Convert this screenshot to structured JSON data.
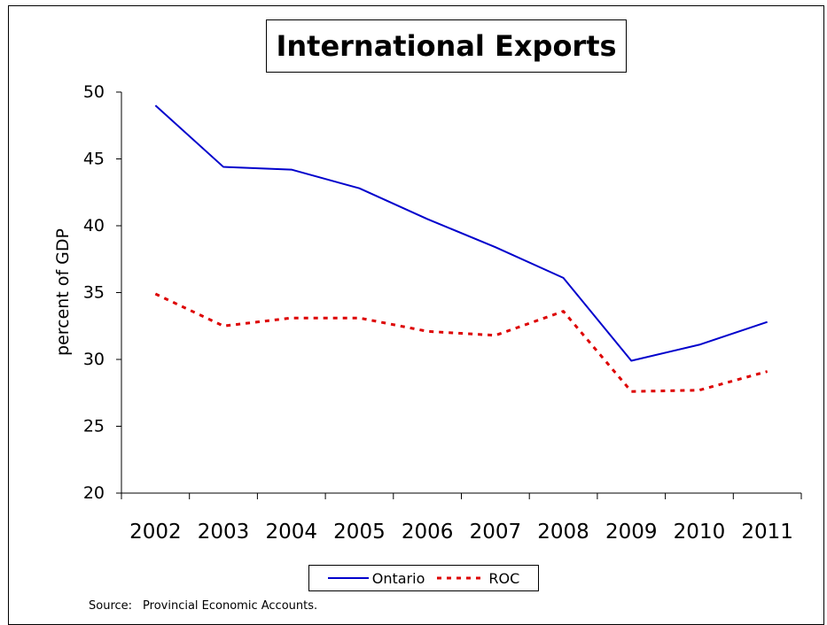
{
  "chart_data": {
    "type": "line",
    "title": "International Exports",
    "xlabel": "",
    "ylabel": "percent of GDP",
    "categories": [
      "2002",
      "2003",
      "2004",
      "2005",
      "2006",
      "2007",
      "2008",
      "2009",
      "2010",
      "2011"
    ],
    "ylim": [
      20,
      50
    ],
    "yticks": [
      "20",
      "25",
      "30",
      "35",
      "40",
      "45",
      "50"
    ],
    "series": [
      {
        "name": "Ontario",
        "values": [
          49.0,
          44.4,
          44.2,
          42.8,
          40.5,
          38.4,
          36.1,
          29.9,
          31.1,
          32.8
        ],
        "color": "#0000cc",
        "style": "solid"
      },
      {
        "name": "ROC",
        "values": [
          34.9,
          32.5,
          33.1,
          33.1,
          32.1,
          31.8,
          33.6,
          27.6,
          27.7,
          29.1
        ],
        "color": "#dd0000",
        "style": "dashed"
      }
    ],
    "grid": false,
    "legend_position": "bottom"
  },
  "source": {
    "label": "Source:",
    "text": "Provincial Economic Accounts."
  }
}
